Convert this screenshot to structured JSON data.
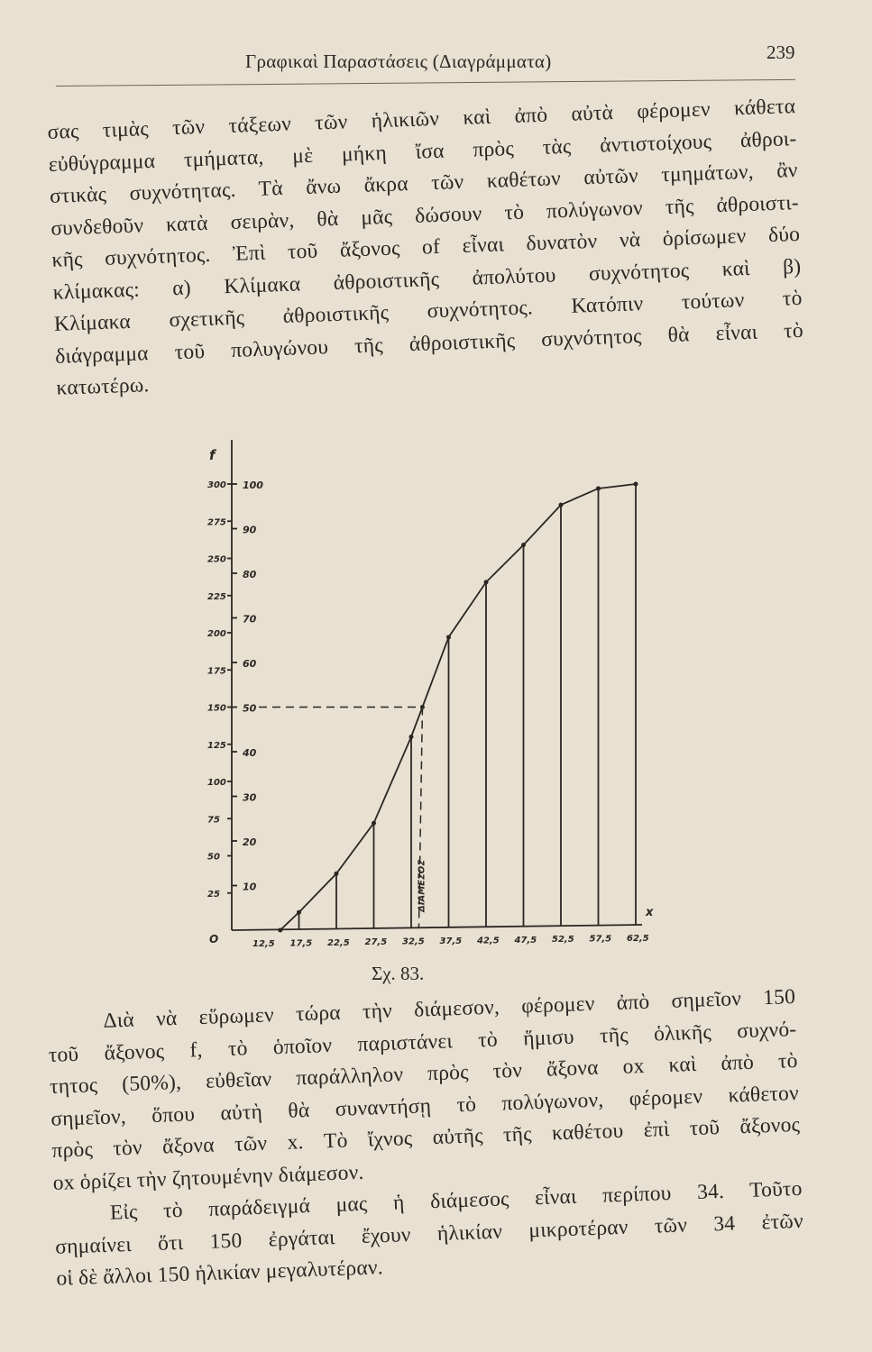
{
  "header": {
    "title": "Γραφικαὶ Παραστάσεις (Διαγράμματα)",
    "page_number": "239"
  },
  "paragraph1": [
    "σας τιμὰς τῶν τάξεων τῶν ἡλικιῶν  καὶ ἀπὸ αὐτὰ φέρομεν κάθετα",
    "εὐθύγραμμα τμήματα, μὲ μήκη ἴσα πρὸς τὰς ἀντιστοίχους ἀθροι-",
    "στικὰς συχνότητας. Τὰ ἄνω ἄκρα τῶν καθέτων αὐτῶν τμημάτων, ἂν",
    "συνδεθοῦν κατὰ σειρὰν, θὰ μᾶς δώσουν τὸ πολύγωνον τῆς ἀθροιστι-",
    "κῆς συχνότητος. Ἐπὶ τοῦ ἄξονος of εἶναι δυνατὸν νὰ ὁρίσωμεν δύο",
    "κλίμακας: α) Κλίμακα ἀθροιστικῆς ἀπολύτου συχνότητος καὶ β)",
    "Κλίμακα σχετικῆς ἀθροιστικῆς συχνότητος. Κατόπιν τούτων τὸ",
    "διάγραμμα τοῦ πολυγώνου τῆς ἀθροιστικῆς συχνότητος θὰ εἶναι τὸ",
    "κατωτέρω."
  ],
  "caption": "Σχ. 83.",
  "paragraph2": [
    "Διὰ νὰ εὕρωμεν τώρα τὴν διάμεσον, φέρομεν ἀπὸ σημεῖον 150",
    "τοῦ ἄξονος f, τὸ ὁποῖον παριστάνει τὸ ἥμισυ τῆς ὁλικῆς συχνό-",
    "τητος (50%), εὐθεῖαν παράλληλον πρὸς τὸν ἄξονα οx καὶ ἀπὸ τὸ",
    "σημεῖον, ὅπου αὐτὴ θὰ συναντήσῃ τὸ πολύγωνον, φέρομεν κάθετον",
    "πρὸς τὸν ἄξονα τῶν x. Τὸ ἴχνος αὐτῆς τῆς καθέτου ἐπὶ τοῦ ἄξονος",
    "οx ὁρίζει τὴν ζητουμένην διάμεσον.",
    "Εἰς τὸ παράδειγμά μας ἡ διάμεσος εἶναι περίπου 34. Τοῦτο",
    "σημαίνει ὅτι 150 ἐργάται ἔχουν ἡλικίαν μικροτέραν τῶν 34 ἐτῶν",
    "οἱ δὲ ἄλλοι 150 ἡλικίαν μεγαλυτέραν."
  ],
  "chart_data": {
    "type": "line",
    "ylabel": "f",
    "xlabel": "x",
    "origin_label": "O",
    "x_ticks": [
      "12,5",
      "17,5",
      "22,5",
      "27,5",
      "32,5",
      "37,5",
      "42,5",
      "47,5",
      "52,5",
      "57,5",
      "62,5"
    ],
    "y_ticks_absolute": [
      25,
      50,
      75,
      100,
      125,
      150,
      175,
      200,
      225,
      250,
      275,
      300
    ],
    "y_ticks_relative": [
      10,
      20,
      30,
      40,
      50,
      60,
      70,
      80,
      90,
      100
    ],
    "series": [
      {
        "x": [
          15,
          17.5,
          22.5,
          27.5,
          32.5,
          34,
          37.5,
          42.5,
          47.5,
          52.5,
          57.5,
          62.5
        ],
        "y": [
          0,
          12,
          38,
          72,
          130,
          150,
          197,
          234,
          259,
          286,
          297,
          300
        ]
      }
    ],
    "median": {
      "x": 34,
      "y": 150,
      "relative": 50,
      "label": "ΔΙΑΜΕΣΟΣ"
    },
    "ylim": [
      0,
      300
    ],
    "xlim": [
      12.5,
      62.5
    ],
    "grid": false,
    "color": "#2a2622"
  }
}
